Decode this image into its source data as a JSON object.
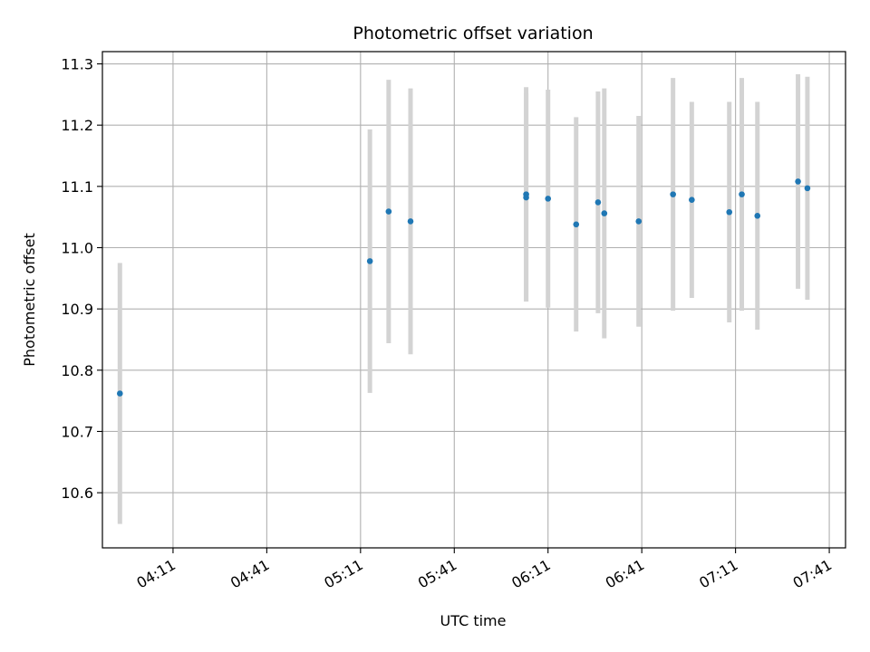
{
  "chart_data": {
    "type": "scatter",
    "title": "Photometric offset variation",
    "xlabel": "UTC time",
    "ylabel": "Photometric offset",
    "x_ticks": [
      "04:11",
      "04:41",
      "05:11",
      "05:41",
      "06:11",
      "06:41",
      "07:11",
      "07:41"
    ],
    "y_ticks": [
      "10.6",
      "10.7",
      "10.8",
      "10.9",
      "11.0",
      "11.1",
      "11.2",
      "11.3"
    ],
    "xlim": [
      "03:54",
      "07:42"
    ],
    "ylim": [
      10.51,
      11.32
    ],
    "grid": true,
    "colors": {
      "point": "#1f77b4",
      "errorbar": "#d3d3d3",
      "grid": "#b0b0b0"
    },
    "points": [
      {
        "x": "03:54",
        "y": 10.762,
        "yerr": 0.213
      },
      {
        "x": "05:14",
        "y": 10.978,
        "yerr": 0.215
      },
      {
        "x": "05:20",
        "y": 11.059,
        "yerr": 0.215
      },
      {
        "x": "05:27",
        "y": 11.043,
        "yerr": 0.217
      },
      {
        "x": "06:04",
        "y": 11.087,
        "yerr": 0.175
      },
      {
        "x": "06:04",
        "y": 11.082,
        "yerr": 0.17
      },
      {
        "x": "06:11",
        "y": 11.08,
        "yerr": 0.178
      },
      {
        "x": "06:20",
        "y": 11.038,
        "yerr": 0.175
      },
      {
        "x": "06:27",
        "y": 11.074,
        "yerr": 0.181
      },
      {
        "x": "06:29",
        "y": 11.056,
        "yerr": 0.204
      },
      {
        "x": "06:40",
        "y": 11.043,
        "yerr": 0.172
      },
      {
        "x": "06:51",
        "y": 11.087,
        "yerr": 0.19
      },
      {
        "x": "06:57",
        "y": 11.078,
        "yerr": 0.16
      },
      {
        "x": "07:09",
        "y": 11.058,
        "yerr": 0.18
      },
      {
        "x": "07:13",
        "y": 11.087,
        "yerr": 0.19
      },
      {
        "x": "07:18",
        "y": 11.052,
        "yerr": 0.186
      },
      {
        "x": "07:31",
        "y": 11.108,
        "yerr": 0.175
      },
      {
        "x": "07:34",
        "y": 11.097,
        "yerr": 0.182
      }
    ]
  }
}
